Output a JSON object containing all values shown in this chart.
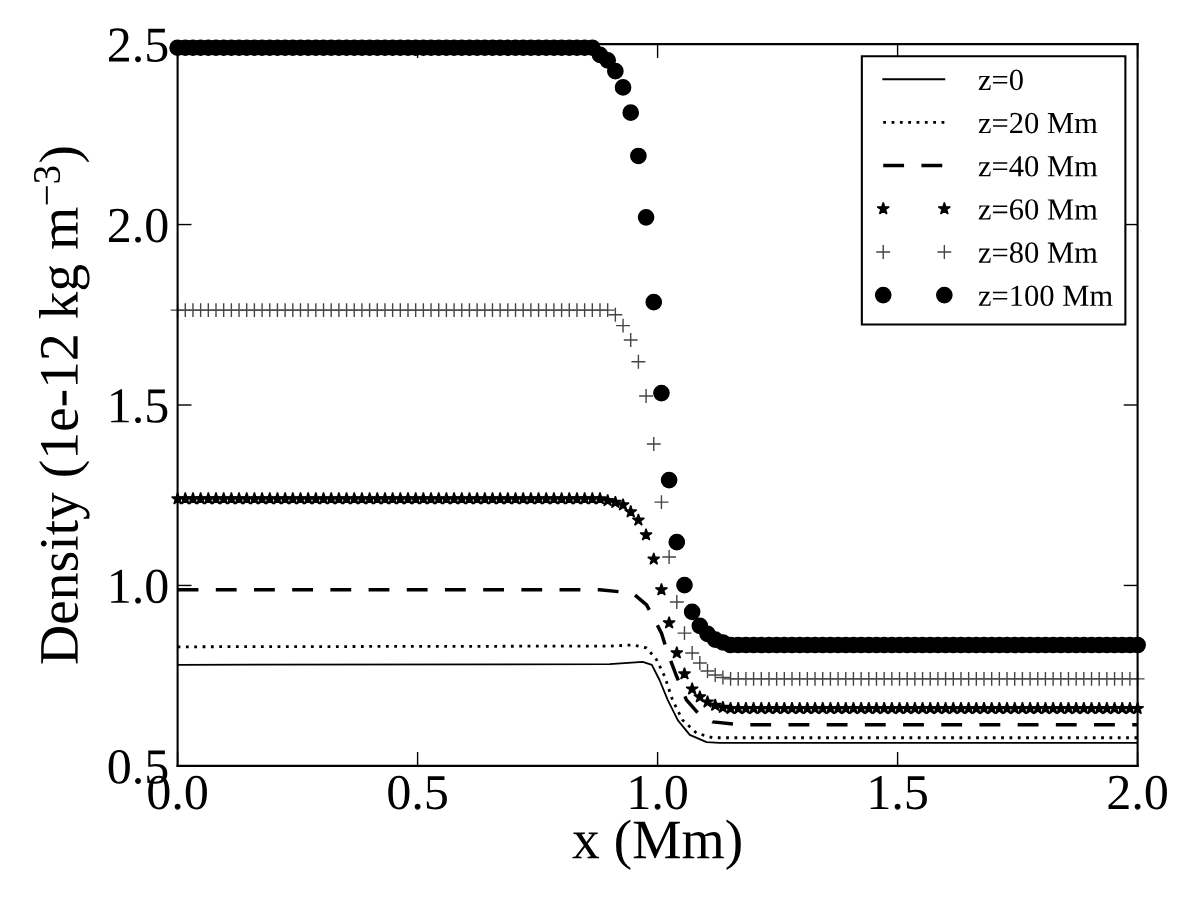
{
  "chart_data": {
    "type": "line",
    "xlabel": "x (Mm)",
    "ylabel": "Density (1e-12 kg m$^{−3}$)",
    "xlim": [
      0.0,
      2.0
    ],
    "ylim": [
      0.5,
      2.5
    ],
    "xticks": [
      {
        "value": 0,
        "label": "0.0"
      },
      {
        "value": 0.5,
        "label": "0.5"
      },
      {
        "value": 1,
        "label": "1.0"
      },
      {
        "value": 1.5,
        "label": "1.5"
      },
      {
        "value": 2,
        "label": "2.0"
      }
    ],
    "yticks": [
      {
        "value": 0.5,
        "label": "0.5"
      },
      {
        "value": 1,
        "label": "1.0"
      },
      {
        "value": 1.5,
        "label": "1.5"
      },
      {
        "value": 2,
        "label": "2.0"
      },
      {
        "value": 2.5,
        "label": "2.5"
      }
    ],
    "grid": false,
    "legend": "top right",
    "x": [
      0,
      0.016,
      0.032,
      0.048,
      0.064,
      0.08,
      0.096,
      0.112,
      0.128,
      0.144,
      0.16,
      0.176,
      0.192,
      0.208,
      0.224,
      0.24,
      0.256,
      0.272,
      0.288,
      0.304,
      0.32,
      0.336,
      0.352,
      0.368,
      0.384,
      0.4,
      0.416,
      0.432,
      0.448,
      0.464,
      0.48,
      0.496,
      0.512,
      0.528,
      0.544,
      0.56,
      0.576,
      0.592,
      0.608,
      0.624,
      0.64,
      0.656,
      0.672,
      0.688,
      0.704,
      0.72,
      0.736,
      0.752,
      0.768,
      0.784,
      0.8,
      0.816,
      0.832,
      0.848,
      0.864,
      0.88,
      0.896,
      0.912,
      0.928,
      0.944,
      0.96,
      0.976,
      0.992,
      1.008,
      1.024,
      1.04,
      1.056,
      1.072,
      1.088,
      1.104,
      1.12,
      1.136,
      1.152,
      1.168,
      1.184,
      1.2,
      1.216,
      1.232,
      1.248,
      1.264,
      1.28,
      1.296,
      1.312,
      1.328,
      1.344,
      1.36,
      1.376,
      1.392,
      1.408,
      1.424,
      1.44,
      1.456,
      1.472,
      1.488,
      1.504,
      1.52,
      1.536,
      1.552,
      1.568,
      1.584,
      1.6,
      1.616,
      1.632,
      1.648,
      1.664,
      1.68,
      1.696,
      1.712,
      1.728,
      1.744,
      1.76,
      1.776,
      1.792,
      1.808,
      1.824,
      1.84,
      1.856,
      1.872,
      1.888,
      1.904,
      1.92,
      1.936,
      1.952,
      1.968,
      1.984,
      2.0
    ],
    "series": [
      {
        "name": "z=0",
        "line_style": "solid",
        "color": "#000000",
        "x": [
          0,
          0.9,
          0.969,
          0.988,
          1.004,
          1.021,
          1.042,
          1.067,
          1.102,
          1.129,
          2.0
        ],
        "values": [
          0.78,
          0.782,
          0.788,
          0.78,
          0.738,
          0.683,
          0.627,
          0.586,
          0.566,
          0.564,
          0.564
        ]
      },
      {
        "name": "z=20 Mm",
        "line_style": "dotted",
        "color": "#000000",
        "x": [
          0,
          0.9,
          0.948,
          0.977,
          0.998,
          1.015,
          1.031,
          1.052,
          1.081,
          1.115,
          2.0
        ],
        "values": [
          0.83,
          0.832,
          0.835,
          0.827,
          0.794,
          0.747,
          0.683,
          0.627,
          0.591,
          0.578,
          0.578
        ]
      },
      {
        "name": "z=40 Mm",
        "line_style": "dashed",
        "color": "#000000",
        "x": [
          0,
          0.879,
          0.948,
          0.977,
          0.994,
          1.008,
          1.021,
          1.04,
          1.06,
          1.0875,
          1.115,
          1.17,
          2.0
        ],
        "values": [
          0.988,
          0.988,
          0.979,
          0.946,
          0.904,
          0.868,
          0.813,
          0.747,
          0.683,
          0.641,
          0.622,
          0.614,
          0.614
        ]
      },
      {
        "name": "z=60 Mm",
        "type": "scatter",
        "marker": "star",
        "color": "#000000",
        "values": [
          1.24,
          1.24,
          1.24,
          1.24,
          1.24,
          1.24,
          1.24,
          1.24,
          1.24,
          1.24,
          1.24,
          1.24,
          1.24,
          1.24,
          1.24,
          1.24,
          1.24,
          1.24,
          1.24,
          1.24,
          1.24,
          1.24,
          1.24,
          1.24,
          1.24,
          1.24,
          1.24,
          1.24,
          1.24,
          1.24,
          1.24,
          1.24,
          1.24,
          1.24,
          1.24,
          1.24,
          1.24,
          1.24,
          1.24,
          1.24,
          1.24,
          1.24,
          1.24,
          1.24,
          1.24,
          1.24,
          1.24,
          1.24,
          1.24,
          1.24,
          1.24,
          1.24,
          1.24,
          1.24,
          1.24,
          1.24,
          1.235,
          1.23,
          1.223,
          1.204,
          1.181,
          1.14,
          1.073,
          0.988,
          0.896,
          0.813,
          0.755,
          0.713,
          0.691,
          0.677,
          0.668,
          0.662,
          0.659,
          0.659,
          0.659,
          0.659,
          0.659,
          0.659,
          0.659,
          0.659,
          0.659,
          0.659,
          0.659,
          0.659,
          0.659,
          0.659,
          0.659,
          0.659,
          0.659,
          0.659,
          0.659,
          0.659,
          0.659,
          0.659,
          0.659,
          0.659,
          0.659,
          0.659,
          0.659,
          0.659,
          0.659,
          0.659,
          0.659,
          0.659,
          0.659,
          0.659,
          0.659,
          0.659,
          0.659,
          0.659,
          0.659,
          0.659,
          0.659,
          0.659,
          0.659,
          0.659,
          0.659,
          0.659,
          0.659,
          0.659,
          0.659,
          0.659,
          0.659,
          0.659,
          0.659,
          0.659
        ]
      },
      {
        "name": "z=80 Mm",
        "type": "scatter",
        "marker": "cross",
        "color": "#444444",
        "values": [
          1.763,
          1.763,
          1.763,
          1.763,
          1.763,
          1.763,
          1.763,
          1.763,
          1.763,
          1.763,
          1.763,
          1.763,
          1.763,
          1.763,
          1.763,
          1.763,
          1.763,
          1.763,
          1.763,
          1.763,
          1.763,
          1.763,
          1.763,
          1.763,
          1.763,
          1.763,
          1.763,
          1.763,
          1.763,
          1.763,
          1.763,
          1.763,
          1.763,
          1.763,
          1.763,
          1.763,
          1.763,
          1.763,
          1.763,
          1.763,
          1.763,
          1.763,
          1.763,
          1.763,
          1.763,
          1.763,
          1.763,
          1.763,
          1.763,
          1.763,
          1.763,
          1.763,
          1.763,
          1.763,
          1.763,
          1.763,
          1.763,
          1.75,
          1.72,
          1.68,
          1.62,
          1.525,
          1.392,
          1.231,
          1.079,
          0.954,
          0.868,
          0.813,
          0.785,
          0.763,
          0.752,
          0.745,
          0.741,
          0.741,
          0.741,
          0.741,
          0.741,
          0.741,
          0.741,
          0.741,
          0.741,
          0.741,
          0.741,
          0.741,
          0.741,
          0.741,
          0.741,
          0.741,
          0.741,
          0.741,
          0.741,
          0.741,
          0.741,
          0.741,
          0.741,
          0.741,
          0.741,
          0.741,
          0.741,
          0.741,
          0.741,
          0.741,
          0.741,
          0.741,
          0.741,
          0.741,
          0.741,
          0.741,
          0.741,
          0.741,
          0.741,
          0.741,
          0.741,
          0.741,
          0.741,
          0.741,
          0.741,
          0.741,
          0.741,
          0.741,
          0.741,
          0.741,
          0.741,
          0.741,
          0.741,
          0.741
        ]
      },
      {
        "name": "z=100 Mm",
        "type": "scatter",
        "marker": "circle",
        "color": "#000000",
        "values": [
          2.49,
          2.49,
          2.49,
          2.49,
          2.49,
          2.49,
          2.49,
          2.49,
          2.49,
          2.49,
          2.49,
          2.49,
          2.49,
          2.49,
          2.49,
          2.49,
          2.49,
          2.49,
          2.49,
          2.49,
          2.49,
          2.49,
          2.49,
          2.49,
          2.49,
          2.49,
          2.49,
          2.49,
          2.49,
          2.49,
          2.49,
          2.49,
          2.49,
          2.49,
          2.49,
          2.49,
          2.49,
          2.49,
          2.49,
          2.49,
          2.49,
          2.49,
          2.49,
          2.49,
          2.49,
          2.49,
          2.49,
          2.49,
          2.49,
          2.49,
          2.49,
          2.49,
          2.49,
          2.49,
          2.49,
          2.47,
          2.455,
          2.425,
          2.38,
          2.31,
          2.19,
          2.02,
          1.785,
          1.533,
          1.292,
          1.12,
          1.001,
          0.927,
          0.888,
          0.866,
          0.85,
          0.842,
          0.835,
          0.835,
          0.835,
          0.835,
          0.835,
          0.835,
          0.835,
          0.835,
          0.835,
          0.835,
          0.835,
          0.835,
          0.835,
          0.835,
          0.835,
          0.835,
          0.835,
          0.835,
          0.835,
          0.835,
          0.835,
          0.835,
          0.835,
          0.835,
          0.835,
          0.835,
          0.835,
          0.835,
          0.835,
          0.835,
          0.835,
          0.835,
          0.835,
          0.835,
          0.835,
          0.835,
          0.835,
          0.835,
          0.835,
          0.835,
          0.835,
          0.835,
          0.835,
          0.835,
          0.835,
          0.835,
          0.835,
          0.835,
          0.835,
          0.835,
          0.835,
          0.835,
          0.835,
          0.835
        ]
      }
    ]
  }
}
